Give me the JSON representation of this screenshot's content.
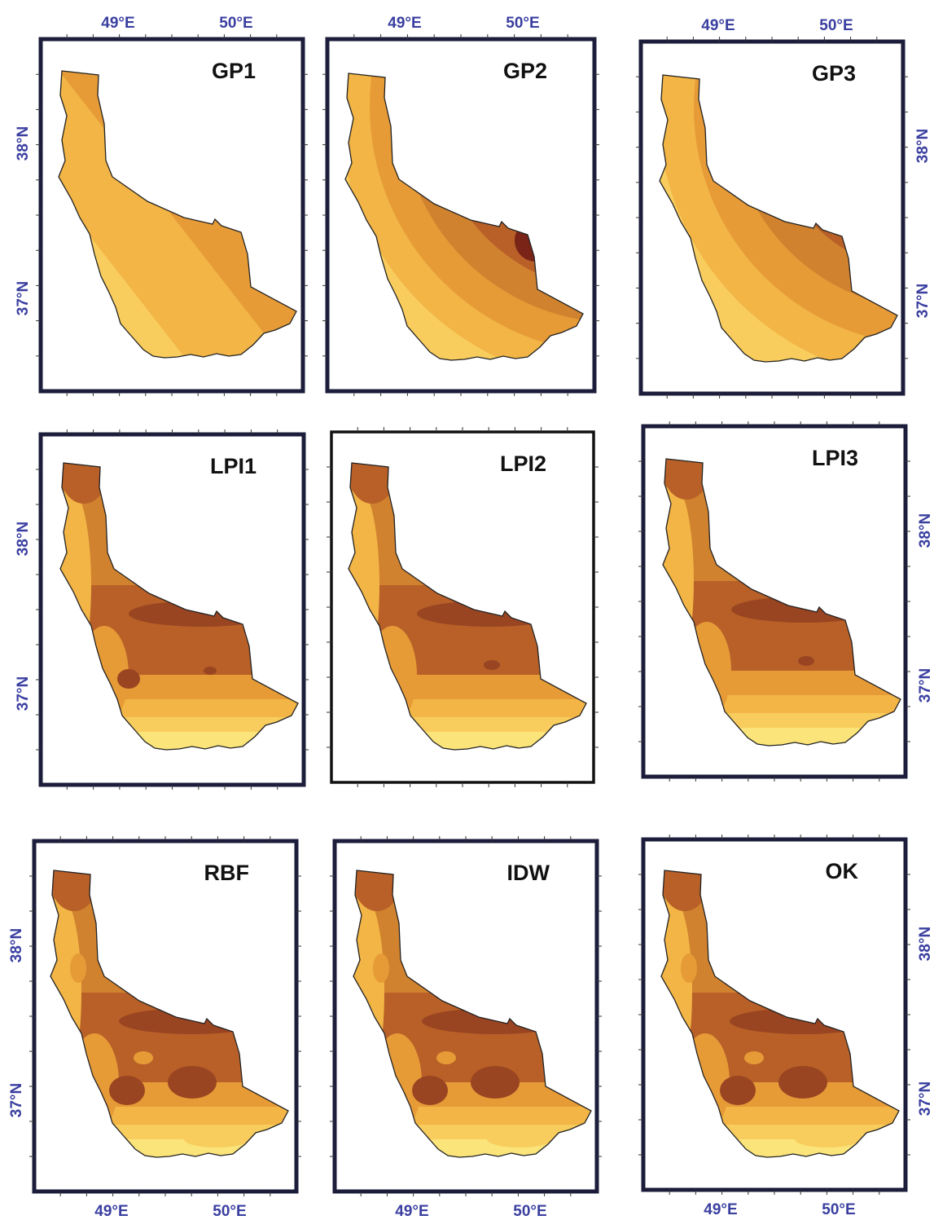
{
  "panels": [
    {
      "id": "gp1",
      "title": "GP1",
      "pattern": "diagonal"
    },
    {
      "id": "gp2",
      "title": "GP2",
      "pattern": "arc-strong"
    },
    {
      "id": "gp3",
      "title": "GP3",
      "pattern": "arc"
    },
    {
      "id": "lpi1",
      "title": "LPI1",
      "pattern": "local"
    },
    {
      "id": "lpi2",
      "title": "LPI2",
      "pattern": "local-smooth"
    },
    {
      "id": "lpi3",
      "title": "LPI3",
      "pattern": "local-smooth"
    },
    {
      "id": "rbf",
      "title": "RBF",
      "pattern": "patchy"
    },
    {
      "id": "idw",
      "title": "IDW",
      "pattern": "patchy"
    },
    {
      "id": "ok",
      "title": "OK",
      "pattern": "patchy"
    }
  ],
  "axis_labels": {
    "lon_49": "49°E",
    "lon_50": "50°E",
    "lat_38": "38°N",
    "lat_37": "37°N"
  },
  "colors": {
    "frame": "#1b1d3a",
    "frame_lpi2": "#111111",
    "axis_text": "#3a3fa0",
    "ramp": [
      "#fbe47a",
      "#f8cd5e",
      "#f2b546",
      "#e69b37",
      "#d0822f",
      "#b86028",
      "#9a4522",
      "#7a2418"
    ]
  }
}
